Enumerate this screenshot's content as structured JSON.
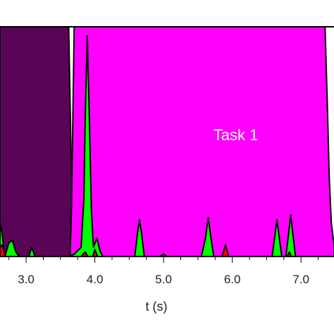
{
  "chart_data": {
    "type": "area",
    "xlabel": "t (s)",
    "ylabel": "",
    "xlim": [
      2.62,
      7.48
    ],
    "ylim": [
      0,
      1
    ],
    "x_ticks": [
      3.0,
      4.0,
      5.0,
      6.0,
      7.0
    ],
    "x_tick_labels": [
      "3.0",
      "4.0",
      "5.0",
      "6.0",
      "7.0"
    ],
    "annotations": [
      {
        "text": "Task 1",
        "x": 6.05,
        "y": 0.53
      }
    ],
    "colors": {
      "dark_region": "#5a0457",
      "task1": "#ff00ff",
      "green": "#00ff00",
      "red": "#ff0000",
      "outline": "#000000"
    },
    "series": [
      {
        "color_key": "dark_region",
        "points": [
          [
            2.62,
            1.0
          ],
          [
            3.62,
            1.0
          ],
          [
            3.65,
            0.5
          ],
          [
            3.67,
            0.18
          ],
          [
            3.7,
            0.02
          ],
          [
            3.74,
            0.0
          ]
        ]
      },
      {
        "color_key": "task1",
        "points": [
          [
            3.64,
            0.0
          ],
          [
            3.66,
            0.2
          ],
          [
            3.68,
            0.6
          ],
          [
            3.7,
            1.0
          ],
          [
            7.35,
            1.0
          ],
          [
            7.38,
            0.7
          ],
          [
            7.41,
            0.35
          ],
          [
            7.44,
            0.15
          ],
          [
            7.48,
            0.05
          ]
        ]
      },
      {
        "color_key": "green",
        "points": [
          [
            2.62,
            0.15
          ],
          [
            2.65,
            0.1
          ],
          [
            2.69,
            0.0
          ],
          [
            2.75,
            0.06
          ],
          [
            2.8,
            0.07
          ],
          [
            2.85,
            0.02
          ],
          [
            2.9,
            0.0
          ],
          [
            3.04,
            0.0
          ],
          [
            3.08,
            0.04
          ],
          [
            3.13,
            0.0
          ],
          [
            3.5,
            0.0
          ],
          [
            3.62,
            0.0
          ],
          [
            3.7,
            0.01
          ],
          [
            3.8,
            0.04
          ],
          [
            3.84,
            0.25
          ],
          [
            3.86,
            0.6
          ],
          [
            3.89,
            0.96
          ],
          [
            3.92,
            0.6
          ],
          [
            3.95,
            0.2
          ],
          [
            3.98,
            0.04
          ],
          [
            4.03,
            0.08
          ],
          [
            4.08,
            0.02
          ],
          [
            4.12,
            0.0
          ],
          [
            4.58,
            0.0
          ],
          [
            4.62,
            0.1
          ],
          [
            4.65,
            0.16
          ],
          [
            4.68,
            0.1
          ],
          [
            4.72,
            0.0
          ],
          [
            4.95,
            0.0
          ],
          [
            5.0,
            0.01
          ],
          [
            5.05,
            0.0
          ],
          [
            5.55,
            0.0
          ],
          [
            5.61,
            0.08
          ],
          [
            5.65,
            0.17
          ],
          [
            5.69,
            0.08
          ],
          [
            5.73,
            0.0
          ],
          [
            6.58,
            0.0
          ],
          [
            6.62,
            0.09
          ],
          [
            6.65,
            0.16
          ],
          [
            6.68,
            0.09
          ],
          [
            6.72,
            0.0
          ],
          [
            6.78,
            0.0
          ],
          [
            6.82,
            0.1
          ],
          [
            6.85,
            0.18
          ],
          [
            6.88,
            0.1
          ],
          [
            6.92,
            0.0
          ],
          [
            7.48,
            0.0
          ]
        ]
      },
      {
        "color_key": "red",
        "points": [
          [
            2.62,
            0.04
          ],
          [
            2.65,
            0.05
          ],
          [
            2.7,
            0.0
          ],
          [
            3.8,
            0.0
          ],
          [
            3.86,
            0.02
          ],
          [
            3.9,
            0.0
          ],
          [
            3.97,
            0.0
          ],
          [
            4.0,
            0.03
          ],
          [
            4.04,
            0.0
          ],
          [
            5.85,
            0.0
          ],
          [
            5.9,
            0.05
          ],
          [
            5.95,
            0.0
          ],
          [
            6.8,
            0.0
          ],
          [
            6.83,
            0.02
          ],
          [
            6.86,
            0.0
          ],
          [
            7.48,
            0.0
          ]
        ]
      }
    ]
  }
}
